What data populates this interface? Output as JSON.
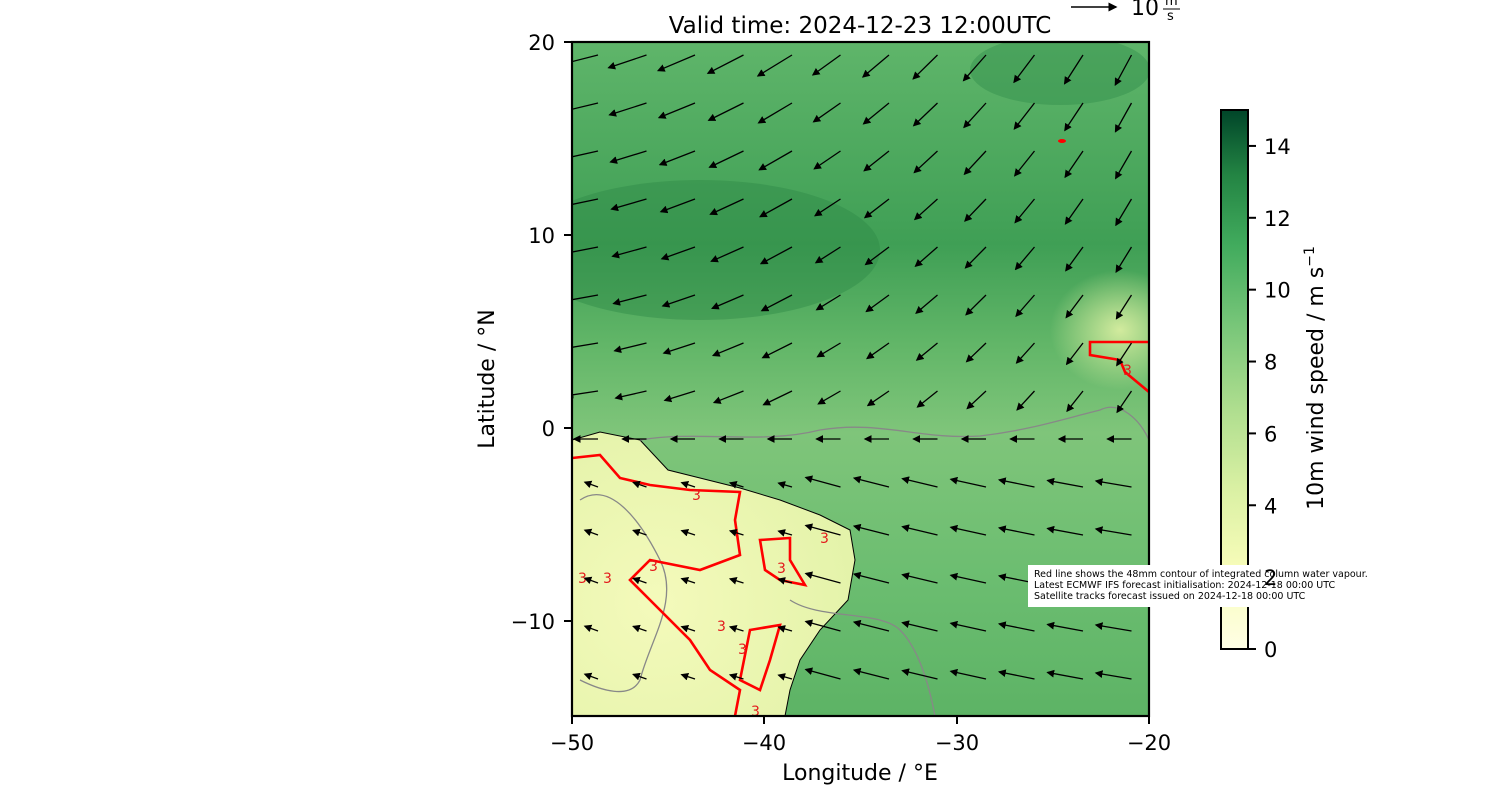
{
  "figure": {
    "title": "Valid time: 2024-12-23 12:00UTC",
    "xlabel": "Longitude / °E",
    "ylabel": "Latitude / °N",
    "x_ticks": [
      "−50",
      "−40",
      "−30",
      "−20"
    ],
    "y_ticks": [
      "20",
      "10",
      "0",
      "−10"
    ],
    "quiver_key_label": "10",
    "quiver_key_unit_num": "m",
    "quiver_key_unit_den": "s"
  },
  "colorbar": {
    "label": "10m wind speed / m s",
    "label_exponent": "−1",
    "ticks": [
      "14",
      "12",
      "10",
      "8",
      "6",
      "4",
      "2",
      "0"
    ],
    "colormap": "YlGn",
    "range": [
      0,
      15
    ]
  },
  "contours": {
    "label_value": "3",
    "label_color": "#e31a1c",
    "line_color": "#ff0000",
    "coast_color": "#000000",
    "secondary_contour_color": "#808080"
  },
  "annotation": {
    "line1": "Red line shows the 48mm contour of integrated column water vapour.",
    "line2": "Latest ECMWF IFS forecast initialisation: 2024-12-18 00:00 UTC",
    "line3": "Satellite tracks forecast issued on 2024-12-18 00:00 UTC"
  },
  "map_data": {
    "lon_range": [
      -50,
      -20
    ],
    "lat_range": [
      -15,
      20
    ],
    "field": "10m wind speed (green shading) with wind vectors"
  }
}
